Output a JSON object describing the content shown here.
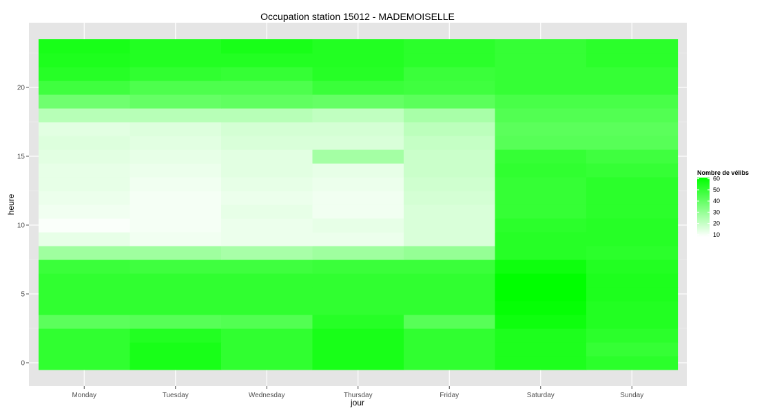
{
  "chart_data": {
    "type": "heatmap",
    "title": "Occupation station 15012 - MADEMOISELLE",
    "xlabel": "jour",
    "ylabel": "heure",
    "x": [
      "Monday",
      "Tuesday",
      "Wednesday",
      "Thursday",
      "Friday",
      "Saturday",
      "Sunday"
    ],
    "y": [
      0,
      1,
      2,
      3,
      4,
      5,
      6,
      7,
      8,
      9,
      10,
      11,
      12,
      13,
      14,
      15,
      16,
      17,
      18,
      19,
      20,
      21,
      22,
      23
    ],
    "y_ticks": [
      0,
      5,
      10,
      15,
      20
    ],
    "ylim": [
      -0.5,
      23.5
    ],
    "values": [
      [
        51,
        56,
        51,
        56,
        51,
        55,
        52
      ],
      [
        51,
        56,
        51,
        56,
        51,
        55,
        50
      ],
      [
        51,
        54,
        51,
        56,
        51,
        55,
        52
      ],
      [
        42,
        43,
        44,
        53,
        43,
        58,
        54
      ],
      [
        51,
        51,
        51,
        51,
        51,
        60,
        54
      ],
      [
        51,
        51,
        51,
        51,
        51,
        61,
        55
      ],
      [
        51,
        51,
        51,
        51,
        51,
        61,
        55
      ],
      [
        49,
        48,
        48,
        49,
        49,
        58,
        54
      ],
      [
        28,
        28,
        26,
        28,
        30,
        53,
        52
      ],
      [
        13,
        11,
        12,
        12,
        16,
        53,
        53
      ],
      [
        9,
        10,
        12,
        13,
        16,
        52,
        53
      ],
      [
        11,
        10,
        13,
        11,
        16,
        50,
        52
      ],
      [
        12,
        10,
        12,
        11,
        17,
        50,
        52
      ],
      [
        13,
        11,
        13,
        12,
        18,
        50,
        52
      ],
      [
        13,
        12,
        14,
        13,
        19,
        51,
        50
      ],
      [
        14,
        13,
        14,
        27,
        19,
        50,
        48
      ],
      [
        15,
        14,
        16,
        16,
        20,
        43,
        43
      ],
      [
        14,
        15,
        17,
        17,
        22,
        42,
        42
      ],
      [
        23,
        23,
        23,
        21,
        26,
        44,
        44
      ],
      [
        38,
        40,
        41,
        40,
        42,
        46,
        46
      ],
      [
        48,
        45,
        45,
        49,
        48,
        50,
        50
      ],
      [
        53,
        51,
        50,
        53,
        49,
        50,
        50
      ],
      [
        55,
        54,
        54,
        54,
        52,
        50,
        52
      ],
      [
        56,
        54,
        56,
        54,
        52,
        50,
        52
      ]
    ],
    "colorscale": {
      "low": "#ffffff",
      "high": "#00ff00",
      "min": 8,
      "max": 61
    },
    "legend": {
      "title": "Nombre de vélibs",
      "ticks": [
        "60",
        "50",
        "40",
        "30",
        "20",
        "10"
      ],
      "tick_values": [
        60,
        50,
        40,
        30,
        20,
        10
      ],
      "placement": "right"
    },
    "grid": true
  }
}
